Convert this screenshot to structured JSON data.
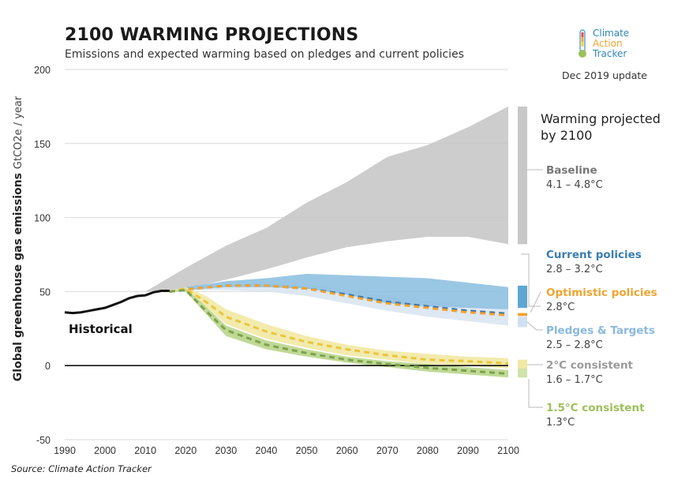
{
  "header": {
    "title": "2100 WARMING PROJECTIONS",
    "subtitle": "Emissions and expected warming based on pledges and current policies",
    "update": "Dec 2019 update",
    "logo_lines": [
      "Climate",
      "Action",
      "Tracker"
    ]
  },
  "source": "Source: Climate Action Tracker",
  "chart_data": {
    "type": "area",
    "title": "2100 WARMING PROJECTIONS",
    "subtitle": "Emissions and expected warming based on pledges and current policies",
    "ylabel": "Global greenhouse gas emissions  GtCO2e / year",
    "xlabel": "",
    "xlim": [
      1990,
      2100
    ],
    "ylim": [
      -50,
      200
    ],
    "xticks": [
      1990,
      2000,
      2010,
      2020,
      2030,
      2040,
      2050,
      2060,
      2070,
      2080,
      2090,
      2100
    ],
    "yticks": [
      -50,
      0,
      50,
      100,
      150,
      200
    ],
    "grid": "horizontal",
    "historical": {
      "label": "Historical",
      "x": [
        1990,
        1992,
        1994,
        1996,
        1998,
        2000,
        2002,
        2004,
        2006,
        2008,
        2010,
        2012,
        2014,
        2016
      ],
      "y": [
        36,
        35.5,
        36,
        37,
        38,
        39,
        41,
        43,
        45.5,
        47,
        47.5,
        49.5,
        50.5,
        50.5
      ]
    },
    "bands": [
      {
        "name": "Baseline",
        "color": "#c8c8c8",
        "x": [
          2010,
          2020,
          2030,
          2040,
          2050,
          2060,
          2070,
          2080,
          2090,
          2100
        ],
        "low": [
          50,
          52,
          58,
          65,
          73,
          80,
          84,
          87,
          87,
          82
        ],
        "high": [
          50,
          66,
          81,
          93,
          110,
          124,
          141,
          149,
          161,
          175
        ]
      },
      {
        "name": "Pledges & Targets",
        "color": "#dae6f2",
        "x": [
          2016,
          2020,
          2030,
          2040,
          2050,
          2060,
          2070,
          2080,
          2090,
          2100
        ],
        "low": [
          50,
          51,
          51,
          50,
          47,
          42,
          37,
          33,
          30,
          27
        ],
        "high": [
          50,
          52,
          54,
          55,
          54,
          51,
          47,
          44,
          41,
          38
        ]
      },
      {
        "name": "Current policies",
        "color": "#8fc1e1",
        "x": [
          2016,
          2020,
          2030,
          2040,
          2050,
          2060,
          2070,
          2080,
          2090,
          2100
        ],
        "low": [
          50,
          51,
          53,
          53,
          52,
          48,
          42,
          40,
          39,
          38
        ],
        "high": [
          50,
          53,
          57,
          59,
          62,
          61,
          60,
          59,
          56,
          53
        ]
      },
      {
        "name": "2°C consistent",
        "color": "#f2e9a4",
        "x": [
          2016,
          2020,
          2025,
          2030,
          2040,
          2050,
          2060,
          2070,
          2080,
          2090,
          2100
        ],
        "low": [
          50,
          51,
          40,
          28,
          18,
          12,
          7,
          4,
          1,
          0,
          -2
        ],
        "high": [
          50,
          53,
          47,
          38,
          28,
          20,
          14,
          10,
          8,
          6,
          5
        ]
      },
      {
        "name": "1.5°C consistent",
        "color": "#b9d58c",
        "x": [
          2016,
          2020,
          2025,
          2030,
          2040,
          2050,
          2060,
          2070,
          2080,
          2090,
          2100
        ],
        "low": [
          50,
          50,
          35,
          20,
          11,
          6,
          2,
          -1,
          -4,
          -6,
          -8
        ],
        "high": [
          50,
          52,
          40,
          27,
          17,
          11,
          6,
          3,
          1,
          -1,
          -3
        ]
      }
    ],
    "series": [
      {
        "name": "Current policies",
        "color": "#3d74a6",
        "style": "dashed",
        "x": [
          2016,
          2020,
          2030,
          2040,
          2050,
          2060,
          2070,
          2080,
          2090,
          2100
        ],
        "y": [
          50,
          51.5,
          54,
          54,
          52,
          48,
          43,
          40,
          37,
          35
        ]
      },
      {
        "name": "Optimistic policies",
        "color": "#f0a431",
        "style": "dashed",
        "x": [
          2016,
          2020,
          2030,
          2040,
          2050,
          2060,
          2070,
          2080,
          2090,
          2100
        ],
        "y": [
          50,
          51.5,
          54,
          54,
          52,
          47,
          42,
          39,
          36,
          34
        ]
      },
      {
        "name": "2°C consistent",
        "color": "#e9c63e",
        "style": "dashed",
        "x": [
          2016,
          2020,
          2025,
          2030,
          2040,
          2050,
          2060,
          2070,
          2080,
          2090,
          2100
        ],
        "y": [
          50,
          52,
          43,
          33,
          23,
          16,
          11,
          7,
          4,
          3,
          1.5
        ]
      },
      {
        "name": "1.5°C consistent",
        "color": "#7ea34a",
        "style": "dashed",
        "x": [
          2016,
          2020,
          2025,
          2030,
          2040,
          2050,
          2060,
          2070,
          2080,
          2090,
          2100
        ],
        "y": [
          50,
          51,
          37,
          24,
          14,
          8.5,
          4,
          1,
          -1.5,
          -3.5,
          -5.5
        ]
      }
    ],
    "right_panel": {
      "heading": [
        "Warming projected",
        "by 2100"
      ],
      "bars": [
        {
          "name": "Baseline",
          "range": "4.1 – 4.8°C",
          "label_color": "#777777",
          "bar_color": "#c8c8c8",
          "low": 82,
          "high": 175
        },
        {
          "name": "Current policies",
          "range": "2.8 – 3.2°C",
          "label_color": "#3a7db3",
          "bar_color": "#5fa6d4",
          "low": 39,
          "high": 54
        },
        {
          "name": "Optimistic policies",
          "range": "2.8°C",
          "label_color": "#f0a431",
          "bar_color": "#f0a431",
          "low": 33.5,
          "high": 35.5
        },
        {
          "name": "Pledges & Targets",
          "range": "2.5 – 2.8°C",
          "label_color": "#8ab9dd",
          "bar_color": "#cfe0f0",
          "low": 26,
          "high": 33
        },
        {
          "name": "2°C consistent",
          "range": "1.6 – 1.7°C",
          "label_color": "#9a9a9a",
          "bar_color": "#f2e9a4",
          "low": -3,
          "high": 4
        },
        {
          "name": "1.5°C consistent",
          "range": "1.3°C",
          "label_color": "#9cc05b",
          "bar_color": "#cfe2a8",
          "low": -8,
          "high": -2
        }
      ]
    }
  }
}
